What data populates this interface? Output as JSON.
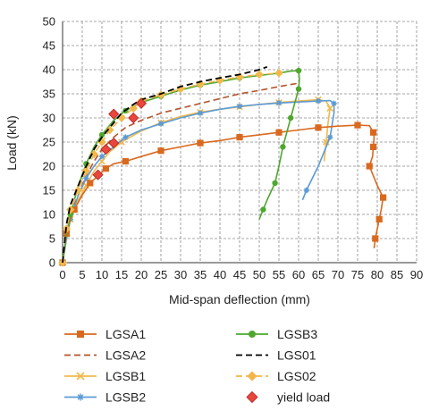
{
  "chart_data": {
    "type": "line",
    "xlabel": "Mid-span deflection (mm)",
    "ylabel": "Load (kN)",
    "xlim": [
      0,
      90
    ],
    "ylim": [
      0,
      50
    ],
    "x_ticks": [
      0,
      5,
      10,
      15,
      20,
      25,
      30,
      35,
      40,
      45,
      50,
      55,
      60,
      65,
      70,
      75,
      80,
      85,
      90
    ],
    "y_ticks": [
      0,
      5,
      10,
      15,
      20,
      25,
      30,
      35,
      40,
      45,
      50
    ],
    "grid": "dashed",
    "legend_position": "bottom",
    "series": [
      {
        "name": "LGSA1",
        "color": "#D9691E",
        "line": "solid",
        "marker": "square",
        "points": [
          [
            0,
            0
          ],
          [
            0.5,
            3
          ],
          [
            1,
            6
          ],
          [
            2,
            9
          ],
          [
            3,
            11
          ],
          [
            5,
            14
          ],
          [
            7,
            16.5
          ],
          [
            9,
            18
          ],
          [
            11,
            19.5
          ],
          [
            13,
            20.5
          ],
          [
            16,
            21
          ],
          [
            20,
            22
          ],
          [
            25,
            23.2
          ],
          [
            30,
            24
          ],
          [
            35,
            24.8
          ],
          [
            40,
            25.3
          ],
          [
            45,
            26
          ],
          [
            50,
            26.5
          ],
          [
            55,
            27
          ],
          [
            60,
            27.5
          ],
          [
            65,
            28
          ],
          [
            70,
            28.3
          ],
          [
            75,
            28.5
          ],
          [
            78,
            28.4
          ],
          [
            79,
            27
          ],
          [
            79.2,
            26
          ],
          [
            79,
            24
          ],
          [
            78.8,
            22
          ],
          [
            78,
            20
          ],
          [
            80,
            16
          ],
          [
            81.5,
            13.5
          ],
          [
            81,
            11
          ],
          [
            80.5,
            9
          ],
          [
            80,
            7
          ],
          [
            79.5,
            5
          ],
          [
            79.2,
            3
          ]
        ]
      },
      {
        "name": "LGSA2",
        "color": "#B5532B",
        "line": "dashed",
        "marker": "none",
        "points": [
          [
            0,
            0
          ],
          [
            1,
            6
          ],
          [
            2,
            10
          ],
          [
            4,
            14
          ],
          [
            6,
            18
          ],
          [
            8,
            21
          ],
          [
            10,
            23.5
          ],
          [
            13,
            26
          ],
          [
            16,
            28
          ],
          [
            20,
            29.5
          ],
          [
            25,
            31
          ],
          [
            30,
            32
          ],
          [
            35,
            33
          ],
          [
            40,
            34
          ],
          [
            45,
            35
          ],
          [
            50,
            35.7
          ],
          [
            55,
            36.5
          ],
          [
            60,
            37.2
          ]
        ]
      },
      {
        "name": "LGSB1",
        "color": "#F2B84B",
        "line": "solid",
        "marker": "x",
        "points": [
          [
            0,
            0
          ],
          [
            1,
            5
          ],
          [
            2,
            9
          ],
          [
            4,
            13
          ],
          [
            6,
            16
          ],
          [
            8,
            19
          ],
          [
            10,
            21
          ],
          [
            12,
            23
          ],
          [
            15,
            25
          ],
          [
            20,
            27.3
          ],
          [
            25,
            29
          ],
          [
            30,
            30.3
          ],
          [
            35,
            31.2
          ],
          [
            40,
            31.8
          ],
          [
            45,
            32.3
          ],
          [
            50,
            32.8
          ],
          [
            55,
            33.2
          ],
          [
            60,
            33.5
          ],
          [
            65,
            33.8
          ],
          [
            67,
            33.5
          ],
          [
            68,
            32
          ],
          [
            67.5,
            29
          ],
          [
            67,
            25
          ],
          [
            66.5,
            21
          ]
        ]
      },
      {
        "name": "LGSB2",
        "color": "#5B9BD5",
        "line": "solid",
        "marker": "star",
        "points": [
          [
            0,
            0
          ],
          [
            1,
            5
          ],
          [
            2,
            9
          ],
          [
            4,
            14
          ],
          [
            6,
            17.5
          ],
          [
            8,
            20
          ],
          [
            10,
            22
          ],
          [
            13,
            24
          ],
          [
            16,
            26
          ],
          [
            20,
            27.5
          ],
          [
            25,
            28.8
          ],
          [
            30,
            30
          ],
          [
            35,
            31
          ],
          [
            40,
            31.8
          ],
          [
            45,
            32.4
          ],
          [
            50,
            32.8
          ],
          [
            55,
            33.1
          ],
          [
            60,
            33.3
          ],
          [
            65,
            33.5
          ],
          [
            68,
            33.6
          ],
          [
            69,
            33
          ],
          [
            69,
            31
          ],
          [
            68,
            26
          ],
          [
            65,
            20
          ],
          [
            62,
            15
          ],
          [
            61,
            13
          ]
        ]
      },
      {
        "name": "LGSB3",
        "color": "#4EA72E",
        "line": "solid",
        "marker": "circle",
        "points": [
          [
            0,
            0
          ],
          [
            1,
            6
          ],
          [
            2,
            10
          ],
          [
            4,
            16
          ],
          [
            6,
            20.5
          ],
          [
            8,
            24
          ],
          [
            10,
            26.5
          ],
          [
            13,
            29.5
          ],
          [
            16,
            31.5
          ],
          [
            20,
            33.2
          ],
          [
            25,
            34.5
          ],
          [
            30,
            35.8
          ],
          [
            35,
            36.8
          ],
          [
            40,
            37.5
          ],
          [
            45,
            38.3
          ],
          [
            50,
            38.8
          ],
          [
            55,
            39.3
          ],
          [
            58,
            39.7
          ],
          [
            60,
            39.8
          ],
          [
            60.2,
            38
          ],
          [
            60,
            36
          ],
          [
            59,
            33
          ],
          [
            58,
            30
          ],
          [
            57,
            27
          ],
          [
            56,
            24
          ],
          [
            55,
            20
          ],
          [
            54,
            16.5
          ],
          [
            52,
            13
          ],
          [
            51,
            11
          ],
          [
            50,
            9
          ]
        ]
      },
      {
        "name": "LGS01",
        "color": "#000000",
        "line": "dashed",
        "marker": "none",
        "points": [
          [
            0,
            0
          ],
          [
            1,
            8
          ],
          [
            2,
            12
          ],
          [
            4,
            16
          ],
          [
            6,
            20
          ],
          [
            8,
            23.5
          ],
          [
            10,
            26
          ],
          [
            12,
            28
          ],
          [
            15,
            31
          ],
          [
            18,
            32.8
          ],
          [
            20,
            33.8
          ],
          [
            25,
            35
          ],
          [
            30,
            36.5
          ],
          [
            35,
            37.5
          ],
          [
            40,
            38.3
          ],
          [
            45,
            39
          ],
          [
            50,
            40
          ],
          [
            52,
            40.6
          ]
        ]
      },
      {
        "name": "LGS02",
        "color": "#F2B84B",
        "line": "dashed",
        "marker": "diamond",
        "points": [
          [
            0,
            0
          ],
          [
            1,
            7
          ],
          [
            2,
            11
          ],
          [
            4,
            15
          ],
          [
            6,
            19
          ],
          [
            8,
            22.5
          ],
          [
            10,
            25
          ],
          [
            12,
            27.5
          ],
          [
            15,
            30
          ],
          [
            18,
            32
          ],
          [
            20,
            33.5
          ],
          [
            25,
            34.8
          ],
          [
            30,
            36
          ],
          [
            35,
            37
          ],
          [
            40,
            37.8
          ],
          [
            45,
            38.5
          ],
          [
            50,
            39
          ],
          [
            55,
            39.3
          ]
        ]
      },
      {
        "name": "yield load",
        "color": "#E8473B",
        "line": "none",
        "marker": "diamond",
        "points": [
          [
            9,
            18.2
          ],
          [
            11,
            23.5
          ],
          [
            13,
            24.8
          ],
          [
            13,
            30.8
          ],
          [
            18,
            30
          ],
          [
            20,
            33
          ]
        ]
      }
    ]
  }
}
